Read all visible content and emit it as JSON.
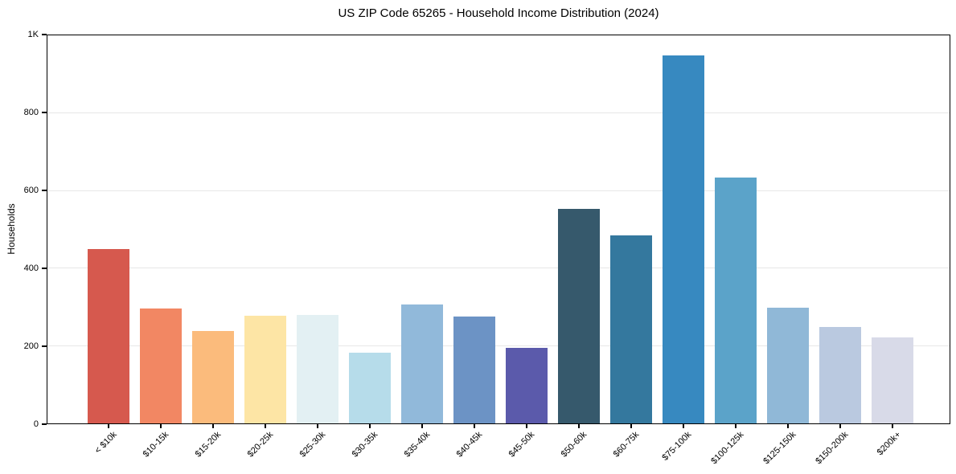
{
  "chart_data": {
    "type": "bar",
    "title": "US ZIP Code 65265 - Household Income Distribution (2024)",
    "xlabel": "",
    "ylabel": "Households",
    "ylim": [
      0,
      1000
    ],
    "grid": "horizontal",
    "legend": "none",
    "background_color": "#ffffff",
    "axis_color": "#000000",
    "gridline_color": "#e7e7e7",
    "yticks": [
      {
        "value": 0,
        "label": "0"
      },
      {
        "value": 200,
        "label": "200"
      },
      {
        "value": 400,
        "label": "400"
      },
      {
        "value": 600,
        "label": "600"
      },
      {
        "value": 800,
        "label": "800"
      },
      {
        "value": 1000,
        "label": "1K"
      }
    ],
    "categories": [
      "< $10k",
      "$10-15k",
      "$15-20k",
      "$20-25k",
      "$25-30k",
      "$30-35k",
      "$35-40k",
      "$40-45k",
      "$45-50k",
      "$50-60k",
      "$60-75k",
      "$75-100k",
      "$100-125k",
      "$125-150k",
      "$150-200k",
      "$200k+"
    ],
    "values": [
      450,
      296,
      238,
      279,
      280,
      183,
      308,
      276,
      196,
      554,
      486,
      950,
      635,
      298,
      250,
      222
    ],
    "bar_colors": [
      "#d6594e",
      "#f28763",
      "#fbbb7c",
      "#fde5a5",
      "#e3f0f3",
      "#b6dcea",
      "#91b9da",
      "#6c93c5",
      "#5b5aab",
      "#36596c",
      "#34789e",
      "#3789c0",
      "#5ba3c9",
      "#90b8d7",
      "#bac9e0",
      "#d8dae8"
    ]
  }
}
